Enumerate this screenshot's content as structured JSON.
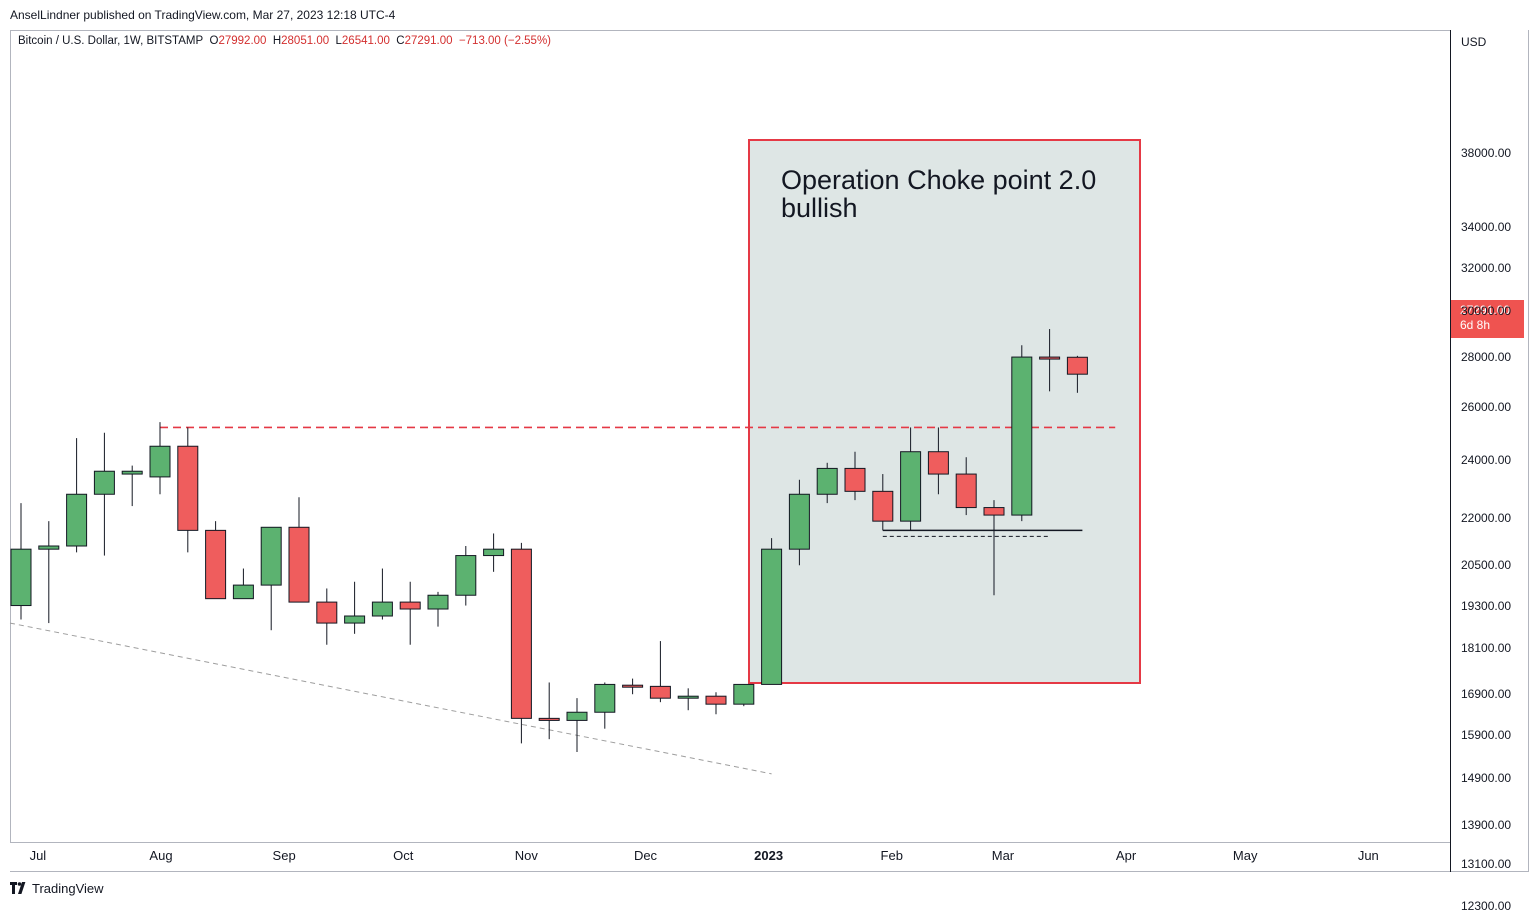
{
  "publisher_line": "AnselLindner published on TradingView.com, Mar 27, 2023 12:18 UTC-4",
  "legend": {
    "symbol": "Bitcoin / U.S. Dollar, 1W, BITSTAMP",
    "open_label": "O",
    "open": "27992.00",
    "high_label": "H",
    "high": "28051.00",
    "low_label": "L",
    "low": "26541.00",
    "close_label": "C",
    "close": "27291.00",
    "change": "−713.00 (−2.55%)"
  },
  "currency": "USD",
  "price_tag": {
    "price": "27291.00",
    "countdown": "6d 8h"
  },
  "annotation": {
    "line1": "Operation Choke point 2.0",
    "line2": "bullish"
  },
  "brand": "TradingView",
  "colors": {
    "up": "#5cb270",
    "down": "#ef5d5d",
    "wick": "#131722",
    "annotation_border": "#e53945",
    "annotation_fill": "#dce5e3",
    "resistance": "#e53945",
    "trend": "#9e9e9e",
    "support": "#131722"
  },
  "chart_data": {
    "type": "candlestick",
    "interval": "1W",
    "y_scale": "log",
    "ylim": [
      11800,
      43000
    ],
    "y_ticks": [
      "38000.00",
      "34000.00",
      "32000.00",
      "30000.00",
      "28000.00",
      "26000.00",
      "24000.00",
      "22000.00",
      "20500.00",
      "19300.00",
      "18100.00",
      "16900.00",
      "15900.00",
      "14900.00",
      "13900.00",
      "13100.00",
      "12300.00"
    ],
    "x_ticks": [
      {
        "label": "Jul",
        "bold": false
      },
      {
        "label": "Aug",
        "bold": false
      },
      {
        "label": "Sep",
        "bold": false
      },
      {
        "label": "Oct",
        "bold": false
      },
      {
        "label": "Nov",
        "bold": false
      },
      {
        "label": "Dec",
        "bold": false
      },
      {
        "label": "2023",
        "bold": true
      },
      {
        "label": "Feb",
        "bold": false
      },
      {
        "label": "Mar",
        "bold": false
      },
      {
        "label": "Apr",
        "bold": false
      },
      {
        "label": "May",
        "bold": false
      },
      {
        "label": "Jun",
        "bold": false
      }
    ],
    "x_tick_dates": [
      "2022-07-01",
      "2022-08-01",
      "2022-09-01",
      "2022-10-01",
      "2022-11-01",
      "2022-12-01",
      "2023-01-01",
      "2023-02-01",
      "2023-03-01",
      "2023-04-01",
      "2023-05-01",
      "2023-06-01"
    ],
    "candles": [
      {
        "date": "2022-06-27",
        "o": 19300,
        "h": 22500,
        "l": 18900,
        "c": 21000
      },
      {
        "date": "2022-07-04",
        "o": 21000,
        "h": 21900,
        "l": 18800,
        "c": 21100
      },
      {
        "date": "2022-07-11",
        "o": 21100,
        "h": 24800,
        "l": 20900,
        "c": 22800
      },
      {
        "date": "2022-07-18",
        "o": 22800,
        "h": 25000,
        "l": 20800,
        "c": 23600
      },
      {
        "date": "2022-07-25",
        "o": 23500,
        "h": 23800,
        "l": 22400,
        "c": 23600
      },
      {
        "date": "2022-08-01",
        "o": 23400,
        "h": 25400,
        "l": 22800,
        "c": 24500
      },
      {
        "date": "2022-08-08",
        "o": 24500,
        "h": 25200,
        "l": 20900,
        "c": 21600
      },
      {
        "date": "2022-08-15",
        "o": 21600,
        "h": 21900,
        "l": 19500,
        "c": 19500
      },
      {
        "date": "2022-08-22",
        "o": 19500,
        "h": 20400,
        "l": 19500,
        "c": 19900
      },
      {
        "date": "2022-08-29",
        "o": 19900,
        "h": 21700,
        "l": 18600,
        "c": 21700
      },
      {
        "date": "2022-09-05",
        "o": 21700,
        "h": 22700,
        "l": 19400,
        "c": 19400
      },
      {
        "date": "2022-09-12",
        "o": 19400,
        "h": 19800,
        "l": 18200,
        "c": 18800
      },
      {
        "date": "2022-09-19",
        "o": 18800,
        "h": 20000,
        "l": 18500,
        "c": 19000
      },
      {
        "date": "2022-09-26",
        "o": 19000,
        "h": 20400,
        "l": 18900,
        "c": 19400
      },
      {
        "date": "2022-10-03",
        "o": 19400,
        "h": 20000,
        "l": 18200,
        "c": 19200
      },
      {
        "date": "2022-10-10",
        "o": 19200,
        "h": 19700,
        "l": 18700,
        "c": 19600
      },
      {
        "date": "2022-10-17",
        "o": 19600,
        "h": 21100,
        "l": 19300,
        "c": 20800
      },
      {
        "date": "2022-10-24",
        "o": 20800,
        "h": 21500,
        "l": 20300,
        "c": 21000
      },
      {
        "date": "2022-10-31",
        "o": 21000,
        "h": 21200,
        "l": 15700,
        "c": 16300
      },
      {
        "date": "2022-11-07",
        "o": 16300,
        "h": 17200,
        "l": 15800,
        "c": 16250
      },
      {
        "date": "2022-11-14",
        "o": 16250,
        "h": 16800,
        "l": 15500,
        "c": 16450
      },
      {
        "date": "2022-11-21",
        "o": 16450,
        "h": 17200,
        "l": 16050,
        "c": 17150
      },
      {
        "date": "2022-11-28",
        "o": 17130,
        "h": 17300,
        "l": 16900,
        "c": 17100
      },
      {
        "date": "2022-12-05",
        "o": 17100,
        "h": 18300,
        "l": 16700,
        "c": 16800
      },
      {
        "date": "2022-12-12",
        "o": 16800,
        "h": 17050,
        "l": 16500,
        "c": 16850
      },
      {
        "date": "2022-12-19",
        "o": 16850,
        "h": 16950,
        "l": 16400,
        "c": 16650
      },
      {
        "date": "2022-12-26",
        "o": 16650,
        "h": 17150,
        "l": 16600,
        "c": 17150
      },
      {
        "date": "2023-01-02",
        "o": 17150,
        "h": 21350,
        "l": 17150,
        "c": 21000
      },
      {
        "date": "2023-01-09",
        "o": 21000,
        "h": 23300,
        "l": 20500,
        "c": 22800
      },
      {
        "date": "2023-01-16",
        "o": 22800,
        "h": 23900,
        "l": 22500,
        "c": 23700
      },
      {
        "date": "2023-01-23",
        "o": 23700,
        "h": 24300,
        "l": 22600,
        "c": 22900
      },
      {
        "date": "2023-01-30",
        "o": 22900,
        "h": 23500,
        "l": 21600,
        "c": 21900
      },
      {
        "date": "2023-02-06",
        "o": 21900,
        "h": 25200,
        "l": 21600,
        "c": 24300
      },
      {
        "date": "2023-02-13",
        "o": 24300,
        "h": 25200,
        "l": 22800,
        "c": 23500
      },
      {
        "date": "2023-02-20",
        "o": 23500,
        "h": 24100,
        "l": 22100,
        "c": 22350
      },
      {
        "date": "2023-02-27",
        "o": 22350,
        "h": 22600,
        "l": 19600,
        "c": 22100
      },
      {
        "date": "2023-03-06",
        "o": 22100,
        "h": 28500,
        "l": 21900,
        "c": 28000
      },
      {
        "date": "2023-03-13",
        "o": 28000,
        "h": 29200,
        "l": 26600,
        "c": 27950
      },
      {
        "date": "2023-03-20",
        "o": 27992,
        "h": 28051,
        "l": 26541,
        "c": 27291
      }
    ],
    "drawings": {
      "resistance": {
        "price": 25200,
        "from": "2022-08-01",
        "to": "2023-03-27",
        "style": "dashed"
      },
      "support": {
        "price": 21600,
        "from": "2023-01-30",
        "to": "2023-03-20",
        "style": "solid"
      },
      "trendline": {
        "from": {
          "date": "2022-06-27",
          "price": 18800
        },
        "to": {
          "date": "2023-01-02",
          "price": 15000
        },
        "style": "dashed"
      },
      "highlight_box": {
        "from": "2023-01-02",
        "to": "2023-03-27",
        "price_top": 36000,
        "price_bottom": 15200
      }
    }
  }
}
